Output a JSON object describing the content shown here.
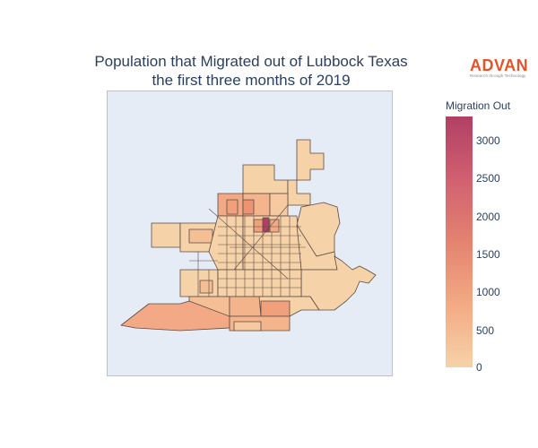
{
  "title": {
    "line1": "Population that Migrated out of Lubbock Texas",
    "line2": "the first three months of 2019"
  },
  "logo": {
    "word": "ADVAN",
    "tagline": "Research through Technology",
    "color": "#e5532a"
  },
  "colorbar": {
    "title": "Migration Out",
    "ticks": [
      "3000",
      "2500",
      "2000",
      "1500",
      "1000",
      "500",
      "0"
    ],
    "range": [
      0,
      3300
    ],
    "colorscale": [
      "#f6d2a9",
      "#f3aa84",
      "#e38370",
      "#d16071",
      "#b13f64"
    ]
  },
  "map": {
    "background": "#e5ecf6",
    "border_color": "#5a4a42",
    "region": "Lubbock Texas census areas"
  }
}
